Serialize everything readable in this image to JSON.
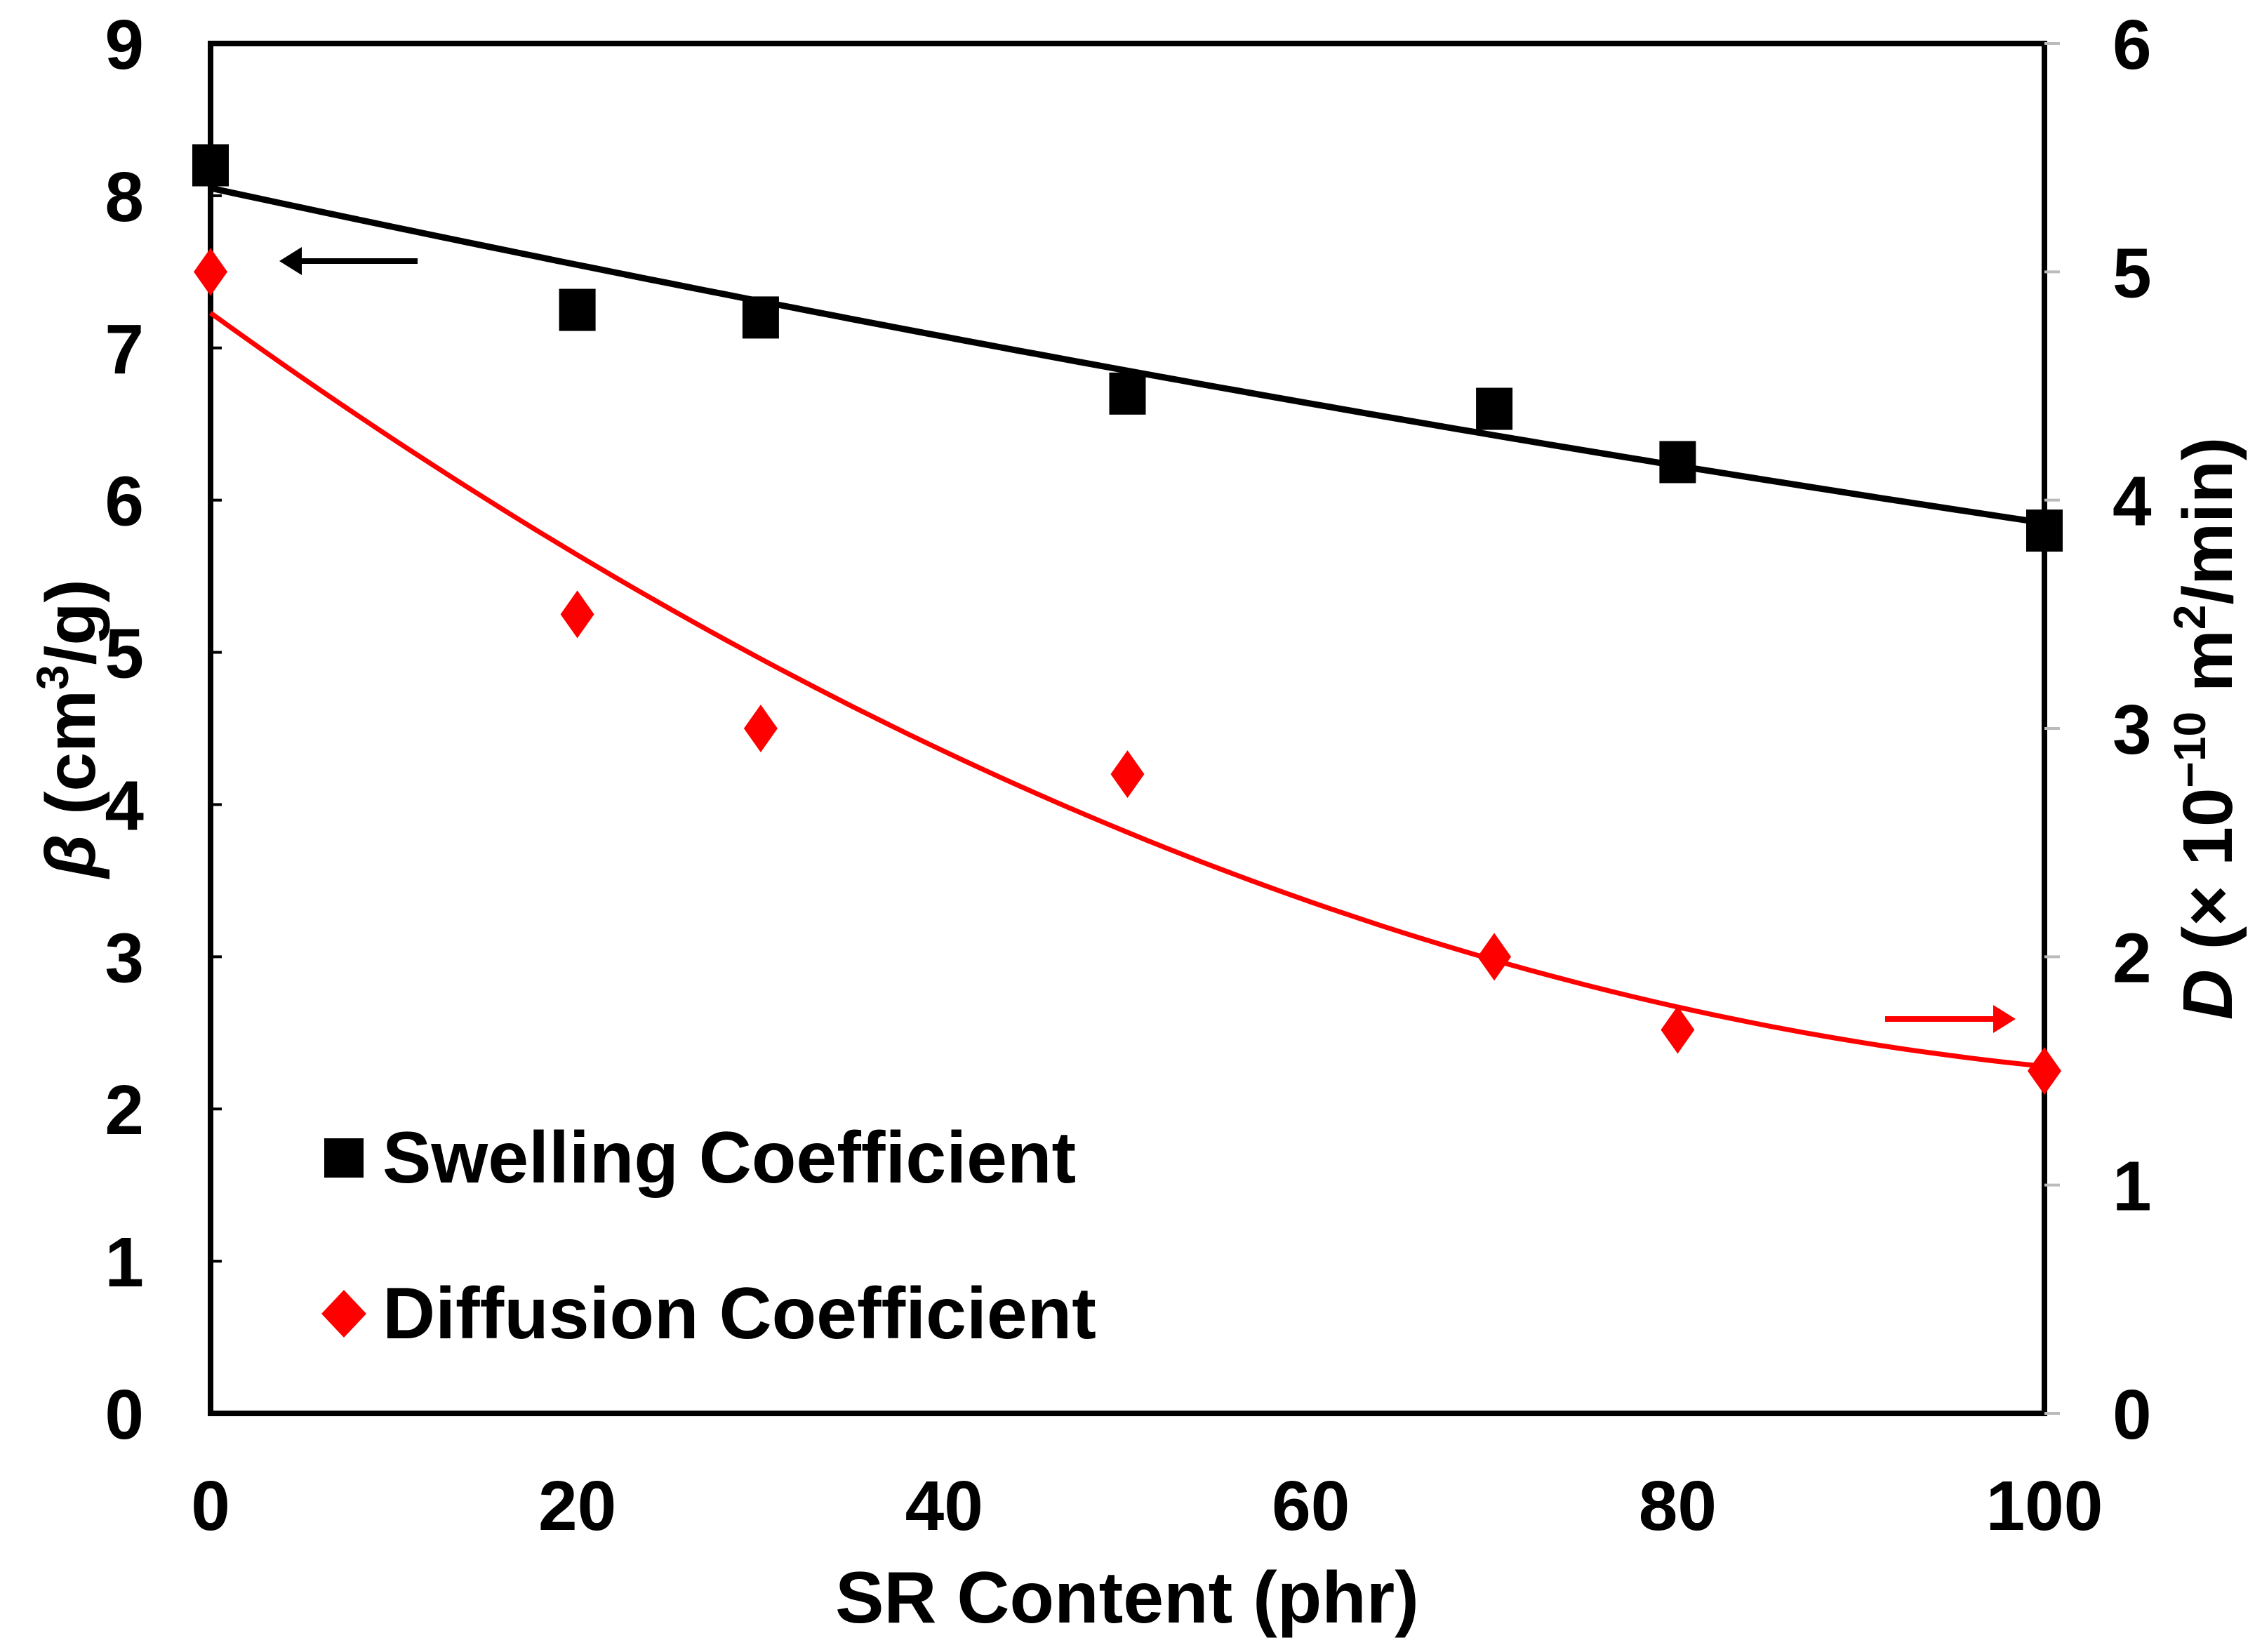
{
  "chart_data": {
    "type": "scatter",
    "title": "",
    "xlabel": "SR Content (phr)",
    "ylabel_left": {
      "symbol": "β",
      "text": " (cm",
      "sup": "3",
      "tail": "/g)"
    },
    "ylabel_right": {
      "symbol": "D",
      "text": " (× 10",
      "sup": "−10",
      "tail": " m",
      "sup2": "2",
      "tail2": "/min)"
    },
    "xlim": [
      0,
      100
    ],
    "ylim_left": [
      0,
      9
    ],
    "ylim_right": [
      0,
      6
    ],
    "x_ticks": [
      "0",
      "20",
      "40",
      "60",
      "80",
      "100"
    ],
    "y_left_ticks": [
      "0",
      "1",
      "2",
      "3",
      "4",
      "5",
      "6",
      "7",
      "8",
      "9"
    ],
    "y_right_ticks": [
      "0",
      "1",
      "2",
      "3",
      "4",
      "5",
      "6"
    ],
    "legend_position": "bottom-left",
    "series": [
      {
        "name": "Swelling Coefficient",
        "axis": "left",
        "marker": "square",
        "color": "#000000",
        "x": [
          0,
          20,
          30,
          50,
          70,
          80,
          100
        ],
        "y": [
          8.2,
          7.25,
          7.2,
          6.7,
          6.6,
          6.25,
          5.8
        ],
        "fit": {
          "type": "polynomial",
          "coefficients": [
            8.05,
            -0.026,
            4e-05
          ]
        }
      },
      {
        "name": "Diffusion Coefficient",
        "axis": "right",
        "marker": "diamond",
        "color": "#ff0000",
        "x": [
          0,
          20,
          30,
          50,
          70,
          80,
          100
        ],
        "y": [
          5.0,
          3.5,
          3.0,
          2.8,
          2.0,
          1.68,
          1.5
        ],
        "fit": {
          "type": "polynomial",
          "coefficients": [
            4.82,
            -0.058,
            0.00025
          ]
        }
      }
    ]
  }
}
